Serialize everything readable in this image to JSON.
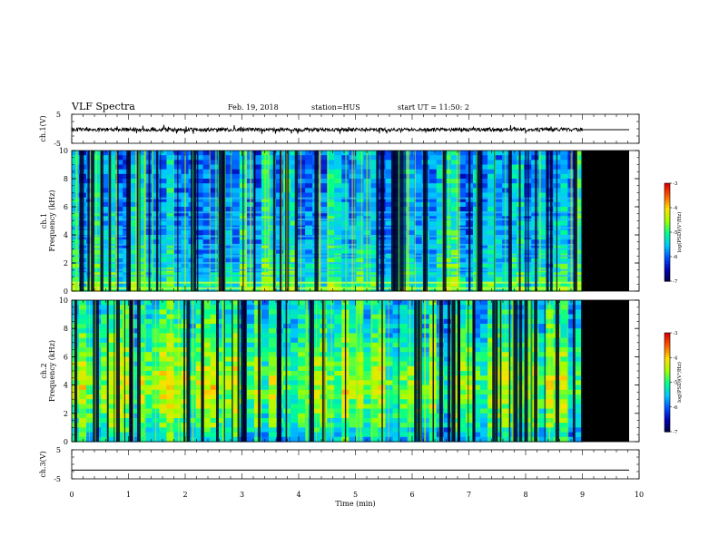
{
  "header": {
    "title": "VLF Spectra",
    "date": "Feb. 19, 2018",
    "station": "station=HUS",
    "start_ut": "start UT = 11:50: 2"
  },
  "chart_data": [
    {
      "type": "line",
      "panel": "waveform ch.1",
      "ylabel": "ch.1(V)",
      "ylim": [
        -5,
        5
      ],
      "yticks": [
        "5",
        "-5"
      ],
      "xlim": [
        0,
        10
      ],
      "data_end_min": 9.0,
      "series": [
        {
          "baseline": -0.3,
          "amplitude": 0.6
        }
      ]
    },
    {
      "type": "heatmap",
      "panel": "spectrogram ch.1",
      "ylabel": "Frequency (kHz)",
      "channel_label": "ch.1",
      "ylim": [
        0,
        10
      ],
      "yticks": [
        "0",
        "2",
        "4",
        "6",
        "8",
        "10"
      ],
      "xlim": [
        0,
        10
      ],
      "data_end_min": 9.0,
      "colorbar": {
        "label": "log(PSD)(V²/Hz)",
        "ticks": [
          "-3",
          "-4",
          "-5",
          "-6",
          "-7"
        ],
        "range": [
          -7,
          -3
        ]
      },
      "horizontal_bands_khz": [
        0.2,
        0.6,
        1.1,
        1.5,
        2.0,
        2.5,
        3.0,
        3.3,
        3.9,
        4.5,
        5.1,
        5.6,
        6.6
      ]
    },
    {
      "type": "heatmap",
      "panel": "spectrogram ch.2",
      "ylabel": "Frequency (kHz)",
      "channel_label": "ch.2",
      "ylim": [
        0,
        10
      ],
      "yticks": [
        "0",
        "2",
        "4",
        "6",
        "8",
        "10"
      ],
      "xlim": [
        0,
        10
      ],
      "data_end_min": 9.0,
      "colorbar": {
        "label": "log(PSD)(V²/Hz)",
        "ticks": [
          "-3",
          "-4",
          "-5",
          "-6",
          "-7"
        ],
        "range": [
          -7,
          -3
        ]
      }
    },
    {
      "type": "line",
      "panel": "waveform ch.3",
      "ylabel": "ch.3(V)",
      "ylim": [
        -5,
        5
      ],
      "yticks": [
        "5",
        "-5"
      ],
      "xlim": [
        0,
        10
      ],
      "series": [
        {
          "baseline": -2.0,
          "amplitude": 0
        }
      ]
    }
  ],
  "xaxis": {
    "label": "Time (min)",
    "ticks": [
      "0",
      "1",
      "2",
      "3",
      "4",
      "5",
      "6",
      "7",
      "8",
      "9",
      "10"
    ]
  },
  "colors": {
    "no_data": "#000000",
    "colormap": [
      "#00003a",
      "#0000b0",
      "#0050ff",
      "#00c8ff",
      "#00ff90",
      "#a0ff00",
      "#ffe000",
      "#ff6000",
      "#e00000"
    ]
  }
}
